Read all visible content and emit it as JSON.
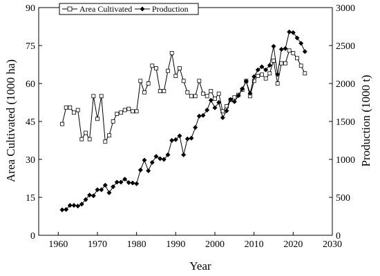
{
  "chart_data": {
    "type": "line",
    "title": "",
    "xlabel": "Year",
    "ylabel_left": "Area Cultivated (1000 ha)",
    "ylabel_right": "Production (1000 t)",
    "xlim": [
      1955,
      2030
    ],
    "ylim_left": [
      0,
      90
    ],
    "ylim_right": [
      0,
      3000
    ],
    "xticks": [
      1960,
      1970,
      1980,
      1990,
      2000,
      2010,
      2020,
      2030
    ],
    "yticks_left": [
      0,
      15,
      30,
      45,
      60,
      75,
      90
    ],
    "yticks_right": [
      0,
      500,
      1000,
      1500,
      2000,
      2500,
      3000
    ],
    "grid": false,
    "legend_position": "top-left",
    "x": [
      1961,
      1962,
      1963,
      1964,
      1965,
      1966,
      1967,
      1968,
      1969,
      1970,
      1971,
      1972,
      1973,
      1974,
      1975,
      1976,
      1977,
      1978,
      1979,
      1980,
      1981,
      1982,
      1983,
      1984,
      1985,
      1986,
      1987,
      1988,
      1989,
      1990,
      1991,
      1992,
      1993,
      1994,
      1995,
      1996,
      1997,
      1998,
      1999,
      2000,
      2001,
      2002,
      2003,
      2004,
      2005,
      2006,
      2007,
      2008,
      2009,
      2010,
      2011,
      2012,
      2013,
      2014,
      2015,
      2016,
      2017,
      2018,
      2019,
      2020,
      2021,
      2022,
      2023
    ],
    "series": [
      {
        "name": "Area Cultivated",
        "axis": "left",
        "marker": "open-square",
        "values": [
          44,
          50.5,
          50.5,
          48.5,
          49.5,
          38,
          40.5,
          38,
          55,
          46,
          55,
          37,
          39.5,
          45,
          48,
          48.5,
          49.5,
          50,
          49,
          49,
          61,
          56.5,
          60,
          67,
          66,
          57,
          57,
          65,
          72,
          63,
          66,
          61,
          56.5,
          55,
          55,
          61,
          56,
          55,
          57,
          54,
          56,
          49,
          51,
          53.5,
          54.5,
          55.5,
          57.5,
          61,
          55,
          61,
          63,
          63.5,
          62,
          64,
          69,
          60,
          68,
          68,
          73,
          72,
          70,
          67,
          64
        ]
      },
      {
        "name": "Production",
        "axis": "right",
        "marker": "filled-diamond",
        "values": [
          335,
          340,
          395,
          395,
          385,
          410,
          470,
          530,
          520,
          600,
          600,
          660,
          560,
          640,
          700,
          700,
          740,
          695,
          690,
          680,
          860,
          990,
          850,
          960,
          1040,
          1010,
          1000,
          1060,
          1250,
          1260,
          1310,
          1060,
          1270,
          1280,
          1420,
          1570,
          1580,
          1650,
          1780,
          1680,
          1750,
          1550,
          1640,
          1790,
          1760,
          1840,
          1930,
          2030,
          1870,
          2090,
          2180,
          2220,
          2180,
          2240,
          2490,
          2120,
          2450,
          2460,
          2680,
          2670,
          2600,
          2530,
          2420
        ]
      }
    ]
  }
}
